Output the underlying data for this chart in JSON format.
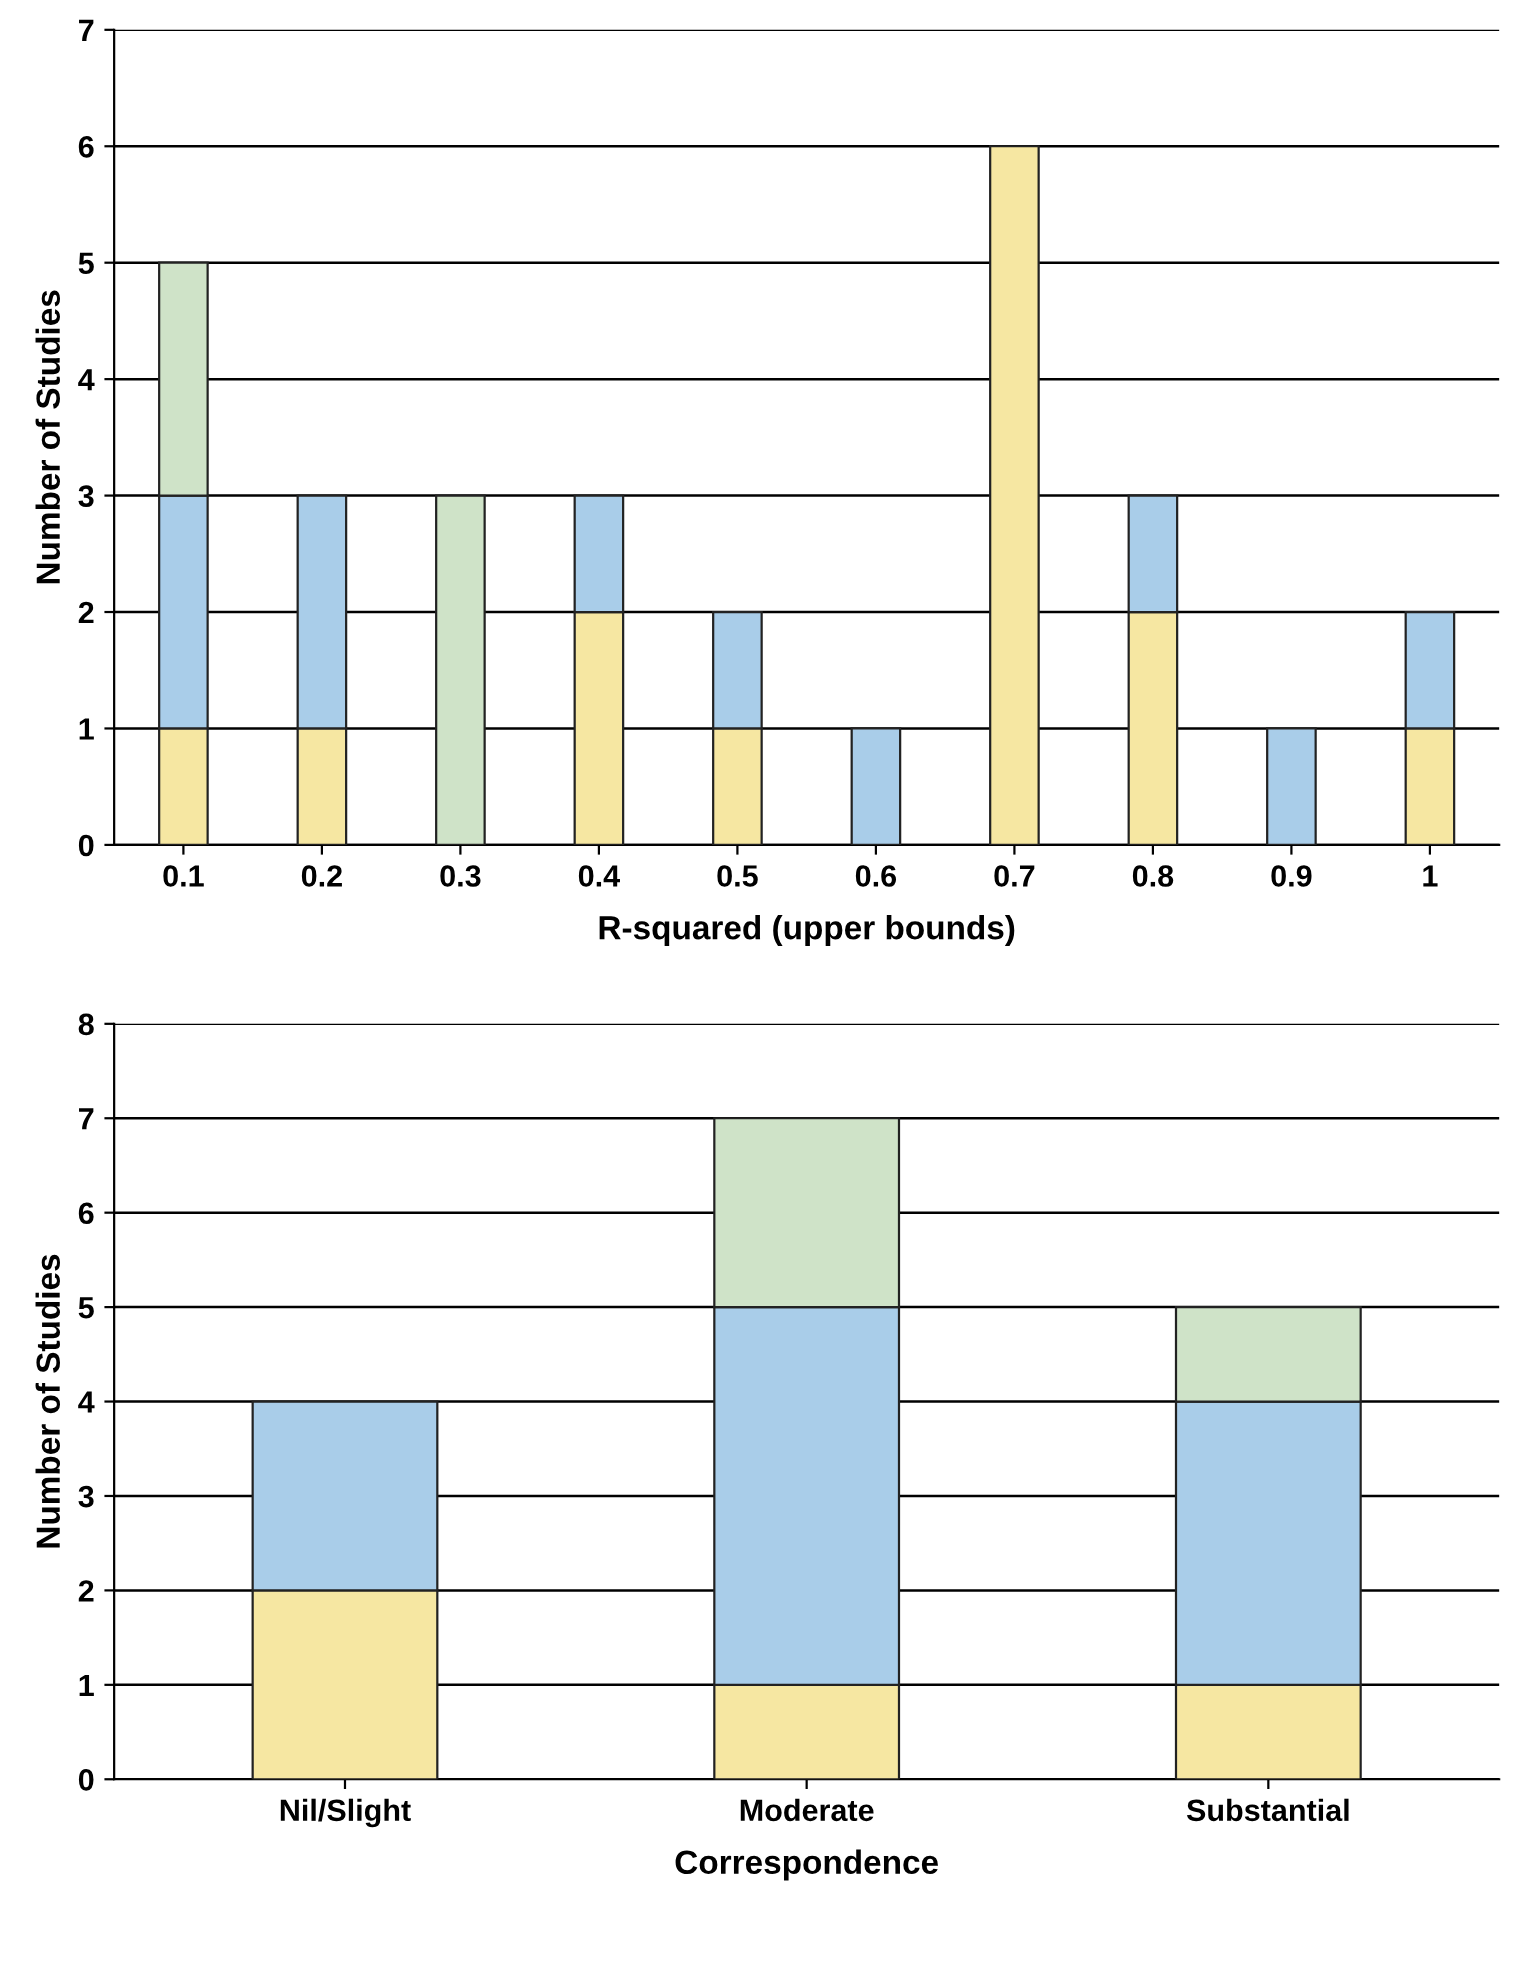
{
  "chart_data": [
    {
      "type": "bar",
      "stacked": true,
      "xlabel": "R-squared (upper bounds)",
      "ylabel": "Number of Studies",
      "categories": [
        "0.1",
        "0.2",
        "0.3",
        "0.4",
        "0.5",
        "0.6",
        "0.7",
        "0.8",
        "0.9",
        "1"
      ],
      "series": [
        {
          "color": "#f6e7a2",
          "values": [
            1,
            1,
            0,
            2,
            1,
            0,
            6,
            2,
            0,
            1
          ]
        },
        {
          "color": "#a9cde9",
          "values": [
            2,
            2,
            0,
            1,
            1,
            1,
            0,
            1,
            1,
            1
          ]
        },
        {
          "color": "#cfe3c8",
          "values": [
            2,
            0,
            3,
            0,
            0,
            0,
            0,
            0,
            0,
            0
          ]
        }
      ],
      "ylim": [
        0,
        7
      ],
      "yticks": [
        0,
        1,
        2,
        3,
        4,
        5,
        6,
        7
      ],
      "grid": "y"
    },
    {
      "type": "bar",
      "stacked": true,
      "xlabel": "Correspondence",
      "ylabel": "Number of Studies",
      "categories": [
        "Nil/Slight",
        "Moderate",
        "Substantial"
      ],
      "series": [
        {
          "color": "#f6e7a2",
          "values": [
            2,
            1,
            1
          ]
        },
        {
          "color": "#a9cde9",
          "values": [
            2,
            4,
            3
          ]
        },
        {
          "color": "#cfe3c8",
          "values": [
            0,
            2,
            1
          ]
        }
      ],
      "ylim": [
        0,
        8
      ],
      "yticks": [
        0,
        1,
        2,
        3,
        4,
        5,
        6,
        7,
        8
      ],
      "grid": "y"
    }
  ]
}
